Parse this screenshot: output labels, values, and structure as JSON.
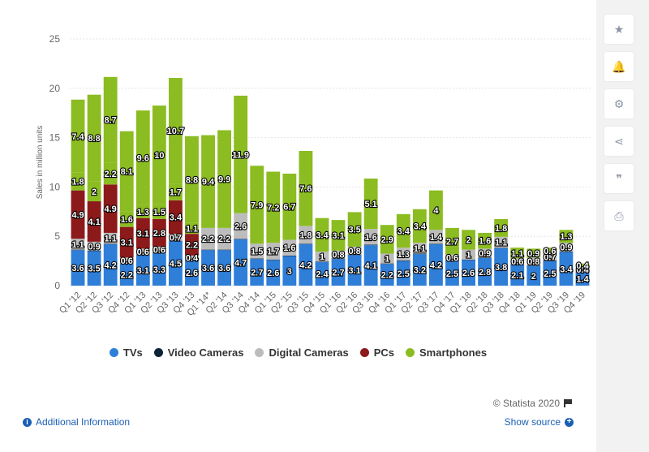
{
  "chart_data": {
    "type": "bar",
    "stacked": true,
    "ylabel": "Sales in million units",
    "ylim": [
      0,
      25
    ],
    "yticks": [
      0,
      5,
      10,
      15,
      20,
      25
    ],
    "grid": true,
    "legend_position": "bottom",
    "categories": [
      "Q1 '12",
      "Q2 '12",
      "Q3 '12",
      "Q4 '12",
      "Q1 '13",
      "Q2 '13",
      "Q3 '13",
      "Q4 '13",
      "Q1 '14*",
      "Q2 '14",
      "Q3 '14",
      "Q4 '14",
      "Q1 '15",
      "Q2 '15",
      "Q3 '15",
      "Q4 '15",
      "Q1 '16",
      "Q2 '16",
      "Q3 '16",
      "Q4 '16",
      "Q1 '17",
      "Q2 '17",
      "Q3 '17",
      "Q4 '17",
      "Q1 '18",
      "Q2 '18",
      "Q3 '18",
      "Q4 '18",
      "Q1 '19",
      "Q2 '19",
      "Q3 '19",
      "Q4 '19"
    ],
    "series": [
      {
        "name": "TVs",
        "color": "#2f7ed8",
        "values": [
          3.6,
          3.5,
          4.2,
          2.2,
          3.1,
          3.3,
          4.5,
          2.6,
          3.6,
          3.6,
          4.7,
          2.7,
          2.6,
          3,
          4.2,
          2.4,
          2.7,
          3.1,
          4.1,
          2.2,
          2.5,
          3.2,
          4.2,
          2.5,
          2.6,
          2.8,
          3.8,
          2.1,
          2,
          2.5,
          3.4,
          1.4
        ],
        "labels": [
          "3.6",
          "3.5",
          "4.2",
          "2.2",
          "3.1",
          "3.3",
          "4.5",
          "2.6",
          "3.6",
          "3.6",
          "4.7",
          "2.7",
          "2.6",
          "3",
          "4.2",
          "2.4",
          "2.7",
          "3.1",
          "4.1",
          "2.2",
          "2.5",
          "3.2",
          "4.2",
          "2.5",
          "2.6",
          "2.8",
          "3.8",
          "2.1",
          "2",
          "2.5",
          "3.4",
          "1.4"
        ]
      },
      {
        "name": "Video Cameras",
        "color": "#0d233a",
        "values": [
          0.05,
          0.05,
          0.05,
          0.05,
          0.05,
          0.05,
          0.05,
          0.05,
          0.05,
          0.05,
          0.05,
          0.05,
          0.05,
          0.05,
          0.05,
          0.05,
          0.05,
          0.05,
          0.05,
          0.05,
          0.05,
          0.05,
          0.05,
          0.05,
          0.05,
          0.05,
          0.05,
          0.05,
          0.05,
          0.05,
          0.05,
          0.05
        ],
        "labels": [
          "",
          "",
          "",
          "",
          "",
          "",
          "",
          "",
          "",
          "",
          "",
          "",
          "",
          "",
          "",
          "",
          "",
          "",
          "",
          "",
          "",
          "",
          "",
          "",
          "",
          "",
          "",
          "",
          "",
          "",
          "",
          ""
        ]
      },
      {
        "name": "Digital Cameras",
        "color": "#bcbcbc",
        "values": [
          1.1,
          0.9,
          1.1,
          0.6,
          0.6,
          0.6,
          0.7,
          0.4,
          2.2,
          2.2,
          2.6,
          1.5,
          1.7,
          1.6,
          1.8,
          1,
          0.8,
          0.8,
          1.6,
          1,
          1.3,
          1.1,
          1.4,
          0.6,
          1,
          0.9,
          1.1,
          0.6,
          0.8,
          0.7,
          0.9,
          0.4
        ],
        "labels": [
          "1.1",
          "0.9",
          "1.1",
          "0.6",
          "0.6",
          "0.6",
          "0.7",
          "0.4",
          "2.2",
          "2.2",
          "2.6",
          "1.5",
          "1.7",
          "1.6",
          "1.8",
          "1",
          "0.8",
          "0.8",
          "1.6",
          "1",
          "1.3",
          "1.1",
          "1.4",
          "0.6",
          "1",
          "0.9",
          "1.1",
          "0.6",
          "0.8",
          "0.7",
          "0.9",
          "0.4"
        ]
      },
      {
        "name": "PCs",
        "color": "#8c1a1a",
        "values": [
          4.9,
          4.1,
          4.9,
          3.1,
          3.1,
          2.8,
          3.4,
          2.2,
          0,
          0,
          0,
          0,
          0,
          0,
          0,
          0,
          0,
          0,
          0,
          0,
          0,
          0,
          0,
          0,
          0,
          0,
          0,
          0,
          0,
          0,
          0,
          0
        ],
        "labels": [
          "4.9",
          "4.1",
          "4.9",
          "3.1",
          "3.1",
          "2.8",
          "3.4",
          "2.2",
          "",
          "",
          "",
          "",
          "",
          "",
          "",
          "",
          "",
          "",
          "",
          "",
          "",
          "",
          "",
          "",
          "",
          "",
          "",
          "",
          "",
          "",
          "",
          ""
        ]
      },
      {
        "name": "Smartphones",
        "color": "#8bbc21",
        "values": [
          1.8,
          2,
          2.2,
          1.6,
          1.3,
          1.5,
          1.7,
          1.1,
          9.4,
          9.9,
          11.9,
          7.9,
          7.2,
          6.7,
          7.6,
          3.4,
          3.1,
          3.5,
          5.1,
          2.9,
          3.4,
          3.4,
          4,
          2.7,
          2,
          1.6,
          1.8,
          1.1,
          0.9,
          0.6,
          1.3,
          0.4
        ],
        "labels": [
          "1.8",
          "2",
          "2.2",
          "1.6",
          "1.3",
          "1.5",
          "1.7",
          "1.1",
          "9.4",
          "9.9",
          "11.9",
          "7.9",
          "7.2",
          "6.7",
          "7.6",
          "3.4",
          "3.1",
          "3.5",
          "5.1",
          "2.9",
          "3.4",
          "3.4",
          "4",
          "2.7",
          "2",
          "1.6",
          "1.8",
          "1.1",
          "0.9",
          "0.6",
          "1.3",
          "0.4"
        ]
      },
      {
        "name": "Smartphones (top)",
        "color": "#8bbc21",
        "values": [
          7.4,
          8.8,
          8.7,
          8.1,
          9.6,
          10,
          10.7,
          8.8,
          0,
          0,
          0,
          0,
          0,
          0,
          0,
          0,
          0,
          0,
          0,
          0,
          0,
          0,
          0,
          0,
          0,
          0,
          0,
          0,
          0,
          0,
          0,
          0
        ],
        "labels": [
          "7.4",
          "8.8",
          "8.7",
          "8.1",
          "9.6",
          "10",
          "10.7",
          "8.8",
          "",
          "",
          "",
          "",
          "",
          "",
          "",
          "",
          "",
          "",
          "",
          "",
          "",
          "",
          "",
          "",
          "",
          "",
          "",
          "",
          "",
          "",
          "",
          ""
        ]
      }
    ]
  },
  "legend": [
    {
      "label": "TVs",
      "color": "#2f7ed8"
    },
    {
      "label": "Video Cameras",
      "color": "#0d233a"
    },
    {
      "label": "Digital Cameras",
      "color": "#bcbcbc"
    },
    {
      "label": "PCs",
      "color": "#8c1a1a"
    },
    {
      "label": "Smartphones",
      "color": "#8bbc21"
    }
  ],
  "credits": "© Statista 2020",
  "footer": {
    "additional_info": "Additional Information",
    "show_source": "Show source"
  },
  "toolbar": [
    {
      "icon": "star-icon",
      "glyph": "★"
    },
    {
      "icon": "bell-icon",
      "glyph": "🔔"
    },
    {
      "icon": "gear-icon",
      "glyph": "⚙"
    },
    {
      "icon": "share-icon",
      "glyph": "⋖"
    },
    {
      "icon": "quote-icon",
      "glyph": "❞"
    },
    {
      "icon": "print-icon",
      "glyph": "⎙"
    }
  ]
}
